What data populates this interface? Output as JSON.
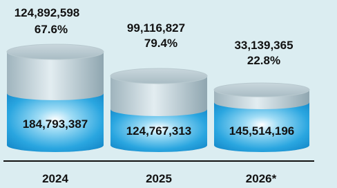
{
  "items": [
    {
      "year": "2024",
      "value": "124,892,598",
      "percent": "67.6%",
      "total": "184,793,387"
    },
    {
      "year": "2025",
      "value": "99,116,827",
      "percent": "79.4%",
      "total": "124,767,313"
    },
    {
      "year": "2026*",
      "value": "33,139,365",
      "percent": "22.8%",
      "total": "145,514,196"
    }
  ]
}
